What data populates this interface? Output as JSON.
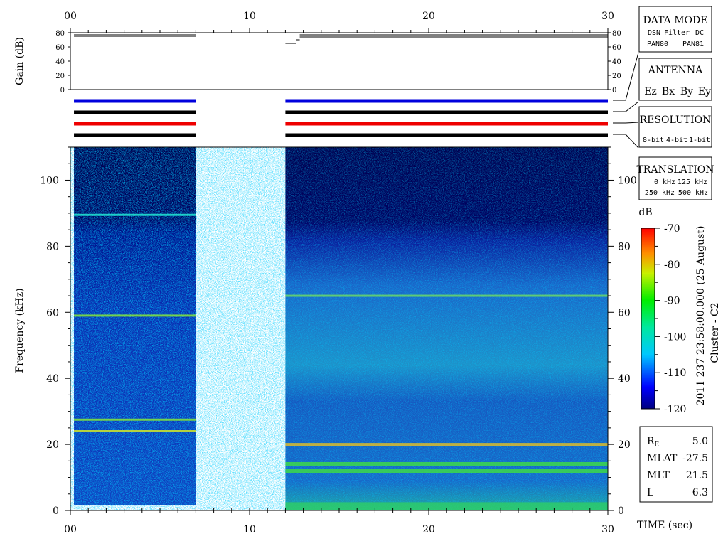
{
  "chart_data": {
    "type": "heatmap",
    "x_axis": {
      "label": "TIME (sec)",
      "range": [
        0,
        30
      ],
      "ticks": [
        "00",
        "10",
        "20",
        "30"
      ],
      "tick_values": [
        0,
        10,
        20,
        30
      ]
    },
    "y_axis": {
      "label": "Frequency (kHz)",
      "range": [
        0,
        110
      ],
      "ticks": [
        "0",
        "20",
        "40",
        "60",
        "80",
        "100"
      ],
      "tick_values": [
        0,
        20,
        40,
        60,
        80,
        100
      ]
    },
    "data_gaps": [
      [
        7,
        12
      ]
    ],
    "line_emissions_khz": {
      "segment_1": [
        89.5,
        59,
        27.5,
        24
      ],
      "segment_2": [
        65,
        20,
        14,
        12
      ]
    },
    "gain_panel": {
      "label": "Gain (dB)",
      "ticks": [
        "0",
        "20",
        "40",
        "60",
        "80"
      ],
      "tick_values": [
        0,
        20,
        40,
        60,
        80
      ],
      "range": [
        0,
        80
      ],
      "lines": [
        {
          "from": 0.2,
          "to": 7,
          "value": 77
        },
        {
          "from": 0.2,
          "to": 7,
          "value": 75
        },
        {
          "from": 12,
          "to": 12.6,
          "value": 65
        },
        {
          "from": 12.6,
          "to": 12.8,
          "value": 70
        },
        {
          "from": 12.8,
          "to": 30,
          "value": 77
        },
        {
          "from": 12.8,
          "to": 30,
          "value": 74
        }
      ]
    },
    "mode_bars": [
      {
        "color": "#0000dd",
        "segments": [
          [
            0.2,
            7
          ],
          [
            12,
            30
          ]
        ]
      },
      {
        "color": "#000000",
        "segments": [
          [
            0.2,
            7
          ],
          [
            12,
            30
          ]
        ]
      },
      {
        "color": "#ee0000",
        "segments": [
          [
            0.2,
            7
          ],
          [
            12,
            30
          ]
        ]
      },
      {
        "color": "#000000",
        "segments": [
          [
            0.2,
            7
          ],
          [
            12,
            30
          ]
        ]
      }
    ],
    "colorbar": {
      "label": "dB",
      "range": [
        -120,
        -70
      ],
      "ticks": [
        "-70",
        "-80",
        "-90",
        "-100",
        "-110",
        "-120"
      ],
      "tick_values": [
        -70,
        -80,
        -90,
        -100,
        -110,
        -120
      ]
    },
    "caption_line_1": "2011 237 23:58:00.000 (25 August)",
    "caption_line_2": "Cluster - C2"
  },
  "legends": {
    "data_mode": {
      "title": "DATA MODE",
      "row1": [
        {
          "text": "DSN",
          "color": "#ee0000"
        },
        {
          "text": "Filter",
          "color": "#00bb00"
        },
        {
          "text": "DC",
          "color": "#0000dd"
        }
      ],
      "row2": [
        {
          "text": "PAN80",
          "color": "#000000"
        },
        {
          "text": "PAN81",
          "color": "#00cccc"
        }
      ]
    },
    "antenna": {
      "title": "ANTENNA",
      "items": [
        {
          "text": "Ez",
          "color": "#ee0000"
        },
        {
          "text": "Bx",
          "color": "#00bb00"
        },
        {
          "text": "By",
          "color": "#0000dd"
        },
        {
          "text": "Ey",
          "color": "#000000"
        }
      ]
    },
    "resolution": {
      "title": "RESOLUTION",
      "items": [
        {
          "text": "8-bit",
          "color": "#ee0000"
        },
        {
          "text": "4-bit",
          "color": "#00bb00"
        },
        {
          "text": "1-bit",
          "color": "#0000dd"
        }
      ]
    },
    "translation": {
      "title": "TRANSLATION",
      "row1": [
        {
          "text": "0 kHz",
          "color": "#ee0000"
        },
        {
          "text": "125 kHz",
          "color": "#00bb00"
        }
      ],
      "row2": [
        {
          "text": "250 kHz",
          "color": "#0000dd"
        },
        {
          "text": "500 kHz",
          "color": "#000000"
        }
      ]
    }
  },
  "orbit": [
    {
      "label": "R",
      "sub": "E",
      "value": "5.0"
    },
    {
      "label": "MLAT",
      "value": "-27.5"
    },
    {
      "label": "MLT",
      "value": "21.5"
    },
    {
      "label": "L",
      "value": "6.3"
    }
  ]
}
